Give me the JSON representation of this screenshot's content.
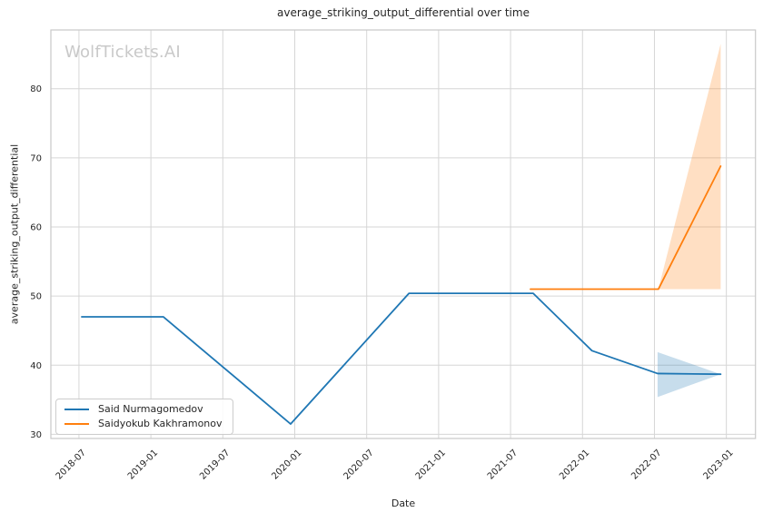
{
  "chart_data": {
    "type": "line",
    "title": "average_striking_output_differential over time",
    "xlabel": "Date",
    "ylabel": "average_striking_output_differential",
    "watermark": "WolfTickets.AI",
    "grid": true,
    "legend_position": "lower left",
    "x_tick_labels": [
      "2018-07",
      "2019-01",
      "2019-07",
      "2020-01",
      "2020-07",
      "2021-01",
      "2021-07",
      "2022-01",
      "2022-07",
      "2023-01"
    ],
    "y_tick_labels": [
      30,
      40,
      50,
      60,
      70,
      80
    ],
    "xlim": [
      "2018-04-21",
      "2023-03-14"
    ],
    "ylim": [
      29.4,
      88.5
    ],
    "band_opacity": 0.25,
    "series": [
      {
        "name": "Said Nurmagomedov",
        "color": "#1f77b4",
        "points": [
          [
            "2018-07-08",
            47.0
          ],
          [
            "2019-02-02",
            47.0
          ],
          [
            "2019-12-21",
            31.5
          ],
          [
            "2020-10-17",
            50.4
          ],
          [
            "2021-08-28",
            50.4
          ],
          [
            "2022-01-25",
            42.1
          ],
          [
            "2022-07-09",
            38.8
          ],
          [
            "2022-12-17",
            38.7
          ]
        ],
        "band": {
          "upper": [
            [
              "2022-07-09",
              41.9
            ],
            [
              "2022-12-17",
              38.7
            ]
          ],
          "lower": [
            [
              "2022-07-09",
              35.4
            ],
            [
              "2022-12-17",
              38.7
            ]
          ]
        }
      },
      {
        "name": "Saidyokub Kakhramonov",
        "color": "#ff7f0e",
        "points": [
          [
            "2021-08-21",
            51.0
          ],
          [
            "2022-07-11",
            51.0
          ],
          [
            "2022-12-17",
            68.8
          ]
        ],
        "band": {
          "upper": [
            [
              "2022-07-11",
              51.0
            ],
            [
              "2022-12-17",
              86.5
            ]
          ],
          "lower": [
            [
              "2022-07-11",
              51.0
            ],
            [
              "2022-12-17",
              51.0
            ]
          ]
        }
      }
    ],
    "colors": {
      "grid": "#d6d6d6",
      "spine": "#c9c9c9",
      "tick_text": "#262626"
    }
  }
}
